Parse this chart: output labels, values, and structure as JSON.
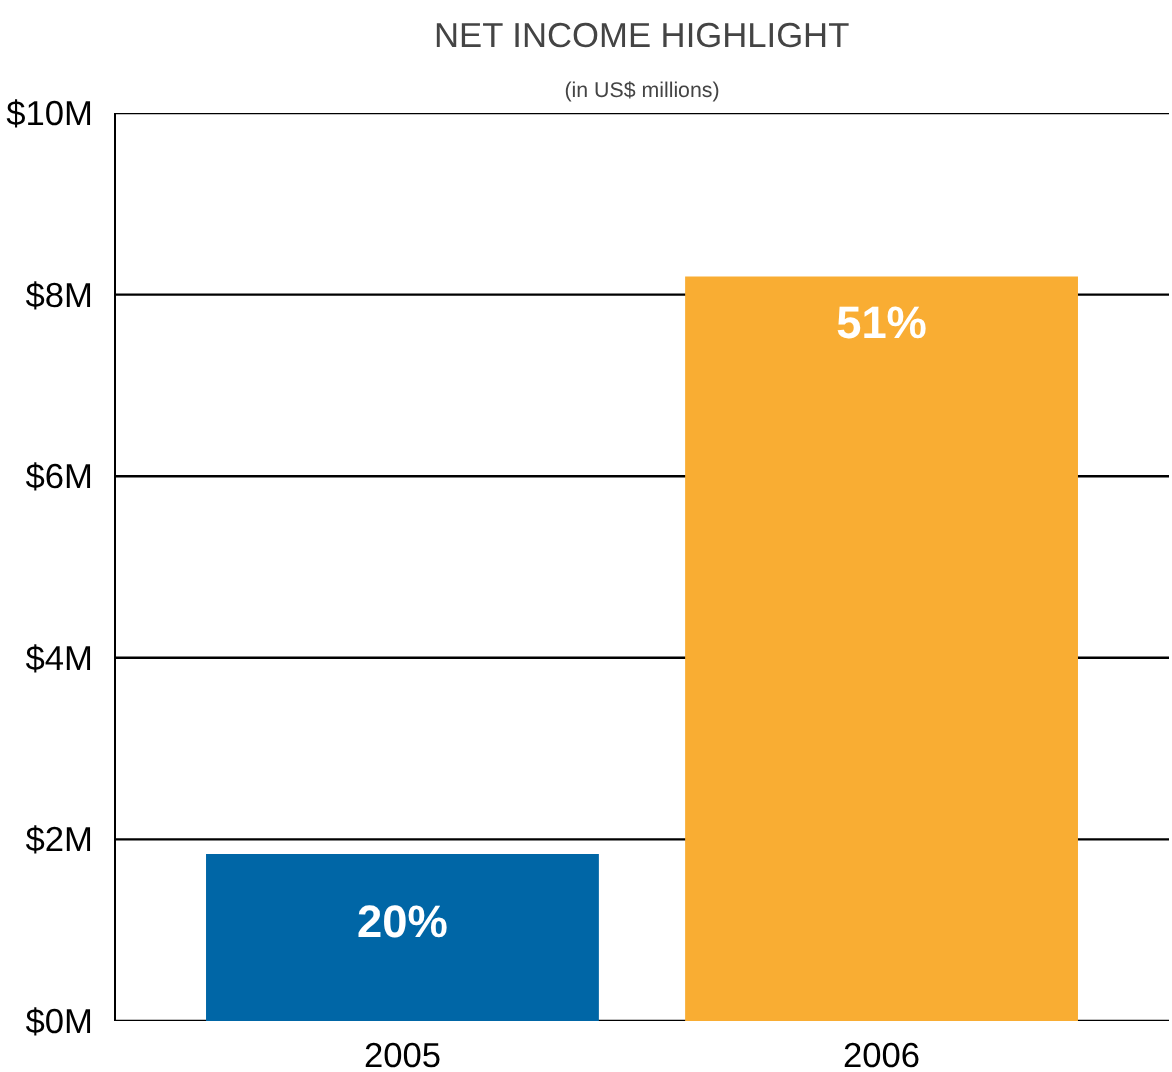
{
  "chart_data": {
    "type": "bar",
    "title": "NET INCOME HIGHLIGHT",
    "subtitle": "(in US$ millions)",
    "categories": [
      "2005",
      "2006"
    ],
    "values": [
      1.84,
      8.2
    ],
    "colors": [
      "#0066a6",
      "#f9ad33"
    ],
    "annotations": [
      "20%",
      "51%"
    ],
    "ylim": [
      0,
      10
    ],
    "yticks": [
      {
        "value": 0,
        "label": "$0M"
      },
      {
        "value": 2,
        "label": "$2M"
      },
      {
        "value": 4,
        "label": "$4M"
      },
      {
        "value": 6,
        "label": "$6M"
      },
      {
        "value": 8,
        "label": "$8M"
      },
      {
        "value": 10,
        "label": "$10M"
      }
    ],
    "grid": "y"
  }
}
